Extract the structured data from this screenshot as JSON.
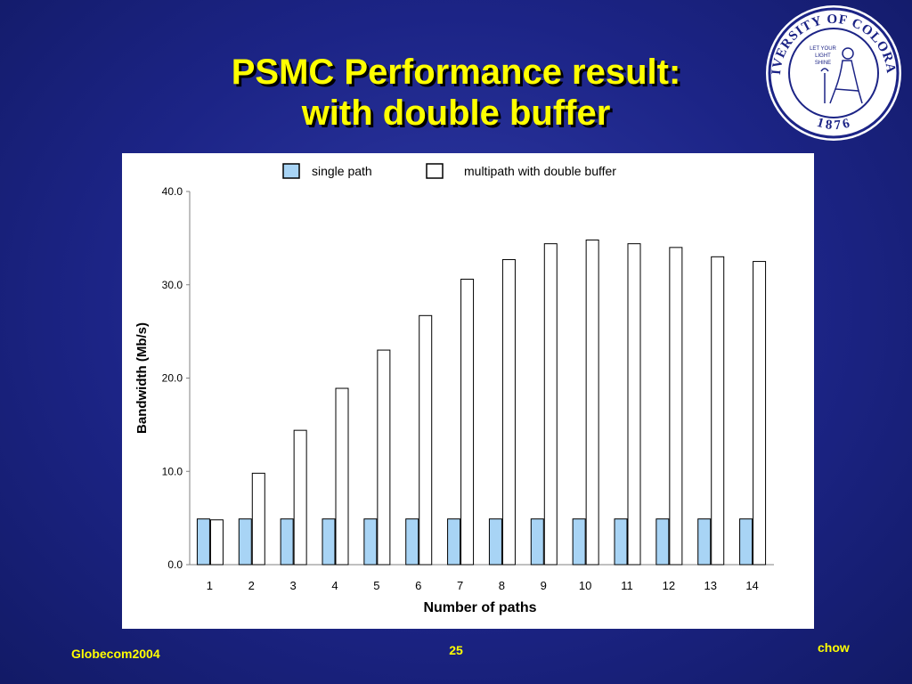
{
  "slide": {
    "title_line1": "PSMC Performance result:",
    "title_line2": "with double buffer",
    "footer_left": "Globecom2004",
    "page_number": "25",
    "footer_right": "chow"
  },
  "seal": {
    "ring_text": "UNIVERSITY OF COLORADO",
    "year": "1876",
    "motto_1": "LET YOUR",
    "motto_2": "LIGHT",
    "motto_3": "SHINE"
  },
  "colors": {
    "accent_title": "#ffff00",
    "single_fill": "#a8d4f5",
    "multi_fill": "#ffffff"
  },
  "chart_data": {
    "type": "bar",
    "categories": [
      "1",
      "2",
      "3",
      "4",
      "5",
      "6",
      "7",
      "8",
      "9",
      "10",
      "11",
      "12",
      "13",
      "14"
    ],
    "series": [
      {
        "name": "single path",
        "values": [
          4.9,
          4.9,
          4.9,
          4.9,
          4.9,
          4.9,
          4.9,
          4.9,
          4.9,
          4.9,
          4.9,
          4.9,
          4.9,
          4.9
        ]
      },
      {
        "name": "multipath with double buffer",
        "values": [
          4.8,
          9.8,
          14.4,
          18.9,
          23.0,
          26.7,
          30.6,
          32.7,
          34.4,
          34.8,
          34.4,
          34.0,
          33.0,
          32.5
        ]
      }
    ],
    "xlabel": "Number of paths",
    "ylabel": "Bandwidth (Mb/s)",
    "ylim": [
      0,
      40
    ],
    "yticks": [
      "0.0",
      "10.0",
      "20.0",
      "30.0",
      "40.0"
    ],
    "legend_position": "top",
    "grid": false
  }
}
